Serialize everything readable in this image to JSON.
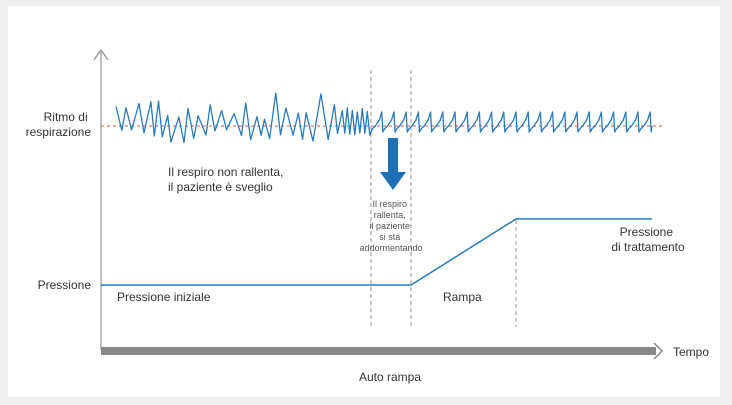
{
  "labels": {
    "breathing_rate": [
      "Ritmo di",
      "respirazione"
    ],
    "pressure": "Pressione",
    "time": "Tempo",
    "auto_ramp": "Auto rampa",
    "awake_note": [
      "Il respiro non rallenta,",
      "il paziente è sveglio"
    ],
    "falling_asleep_note": [
      "Il respiro",
      "rallenta,",
      "il paziente",
      "si sta",
      "addormentando"
    ],
    "initial_pressure": "Pressione iniziale",
    "ramp": "Rampa",
    "treatment_pressure": [
      "Pressione",
      "di trattamento"
    ]
  },
  "colors": {
    "background": "#eeeeee",
    "panel": "#ffffff",
    "signal": "#2a7ab8",
    "arrow": "#1f6fb4",
    "reference_line": "#d9534f",
    "axis": "#999999",
    "time_bar": "#888888",
    "divider": "#999999"
  },
  "icons": {
    "down_arrow": "down-arrow-icon",
    "axis_arrow": "chevron-arrow-icon"
  }
}
